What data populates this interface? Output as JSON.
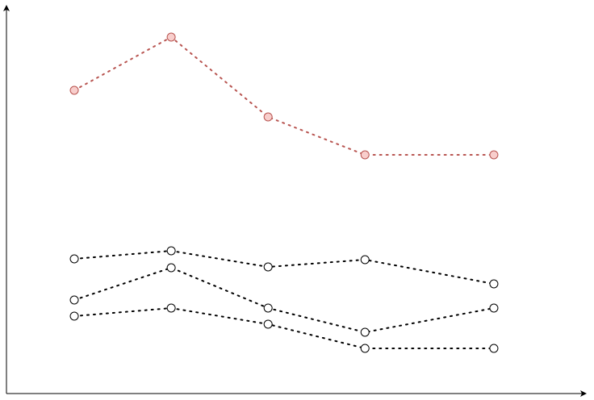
{
  "chart_data": {
    "type": "line",
    "title": "",
    "xlabel": "",
    "ylabel": "",
    "xlim": [
      0.3,
      6.28
    ],
    "ylim": [
      0,
      48.2
    ],
    "grid": false,
    "legend": "none",
    "x": [
      1,
      2,
      3,
      4,
      5.33
    ],
    "series": [
      {
        "values": [
          37.6,
          44.2,
          34.3,
          29.6,
          29.6
        ],
        "color": "#b85450",
        "fill": "#f8cecc"
      },
      {
        "values": [
          16.7,
          17.7,
          15.7,
          16.6,
          13.6
        ],
        "color": "#000000",
        "fill": "#ffffff"
      },
      {
        "values": [
          11.6,
          15.6,
          10.6,
          7.6,
          10.6
        ],
        "color": "#000000",
        "fill": "#ffffff"
      },
      {
        "values": [
          9.6,
          10.6,
          8.6,
          5.6,
          5.6
        ],
        "color": "#000000",
        "fill": "#ffffff"
      }
    ]
  }
}
